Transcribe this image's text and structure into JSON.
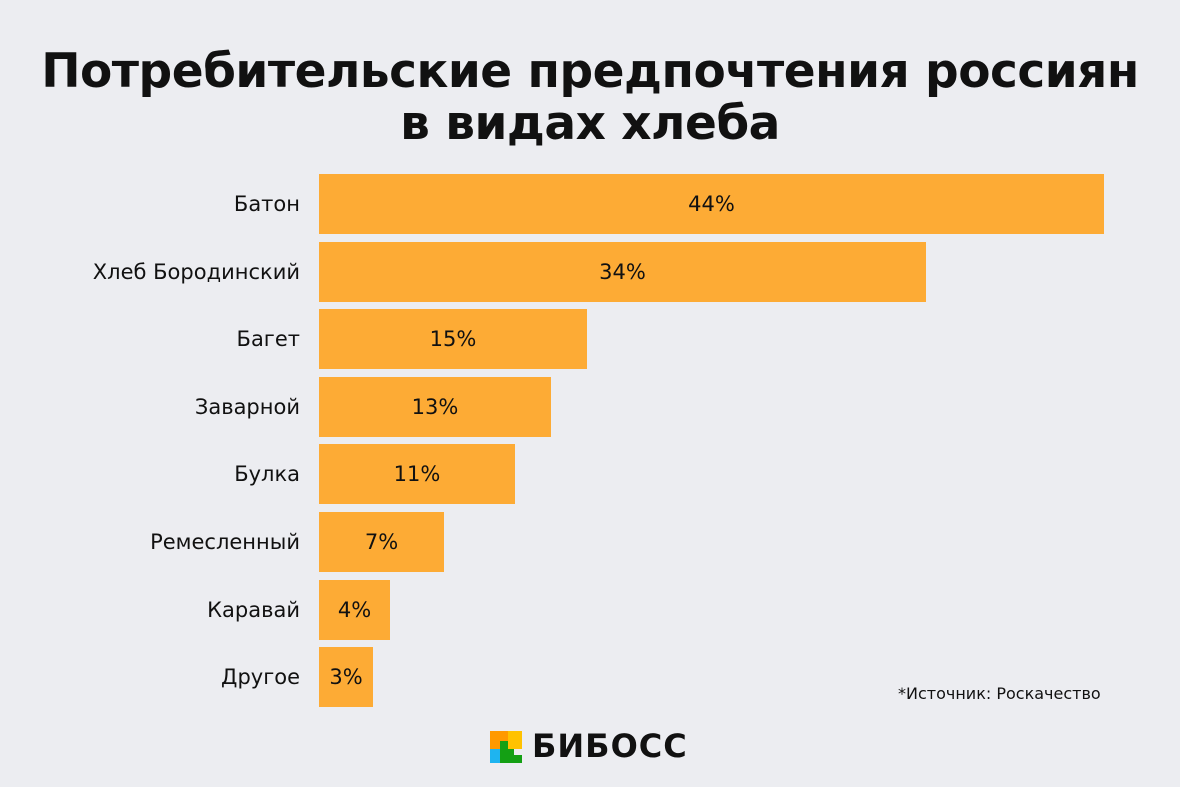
{
  "title_line1": "Потребительские предпочтения россиян",
  "title_line2": "в видах хлеба",
  "chart_data": {
    "type": "bar",
    "orientation": "horizontal",
    "categories": [
      "Батон",
      "Хлеб Бородинский",
      "Багет",
      "Заварной",
      "Булка",
      "Ремесленный",
      "Каравай",
      "Другое"
    ],
    "values": [
      44,
      34,
      15,
      13,
      11,
      7,
      4,
      3
    ],
    "data_labels": [
      "44%",
      "34%",
      "15%",
      "13%",
      "11%",
      "7%",
      "4%",
      "3%"
    ],
    "unit": "%",
    "bar_color": "#FDAB35",
    "grid": false
  },
  "source": "*Источник: Роскачество",
  "logo": {
    "text": "БИБОСС",
    "colors": [
      "#FF9900",
      "#FFC200",
      "#1EB4F0",
      "#14A014"
    ]
  }
}
